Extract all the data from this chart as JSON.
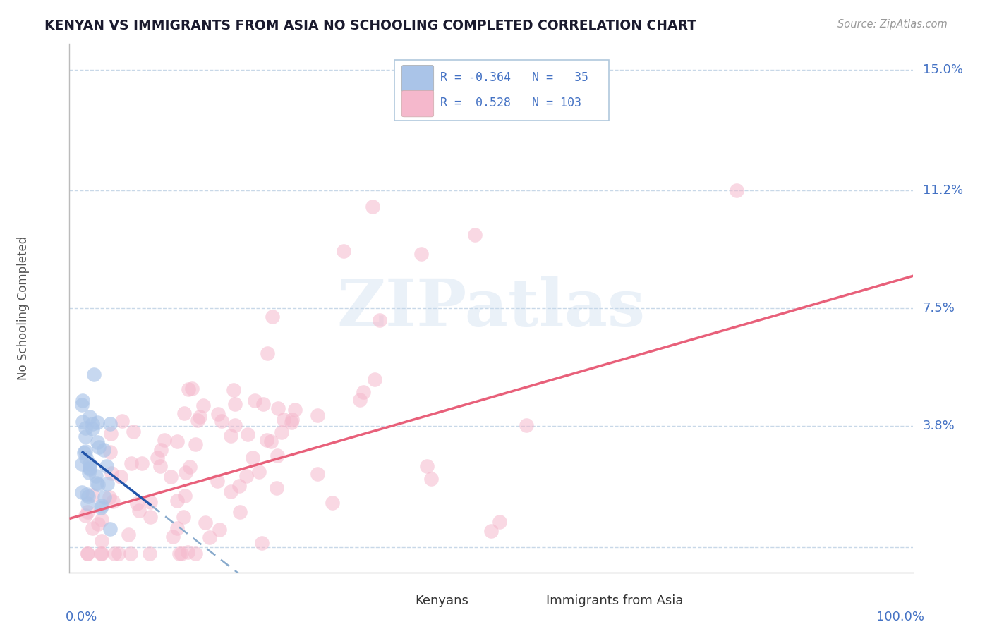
{
  "title": "KENYAN VS IMMIGRANTS FROM ASIA NO SCHOOLING COMPLETED CORRELATION CHART",
  "source": "Source: ZipAtlas.com",
  "ylabel": "No Schooling Completed",
  "xlim": [
    -0.015,
    1.015
  ],
  "ylim": [
    -0.008,
    0.158
  ],
  "kenyan_color": "#aac4e8",
  "asia_color": "#f5b8cc",
  "kenyan_line_color": "#2255aa",
  "asia_line_color": "#e8607a",
  "axis_label_color": "#4472c4",
  "grid_color": "#c8d8e8",
  "title_color": "#1a1a2e",
  "watermark": "ZIPatlas",
  "ytick_vals": [
    0.0,
    0.038,
    0.075,
    0.112,
    0.15
  ],
  "ytick_labels": [
    "",
    "3.8%",
    "7.5%",
    "11.2%",
    "15.0%"
  ],
  "pink_slope": 0.074,
  "pink_intercept": 0.01,
  "blue_slope": -0.2,
  "blue_intercept": 0.03
}
